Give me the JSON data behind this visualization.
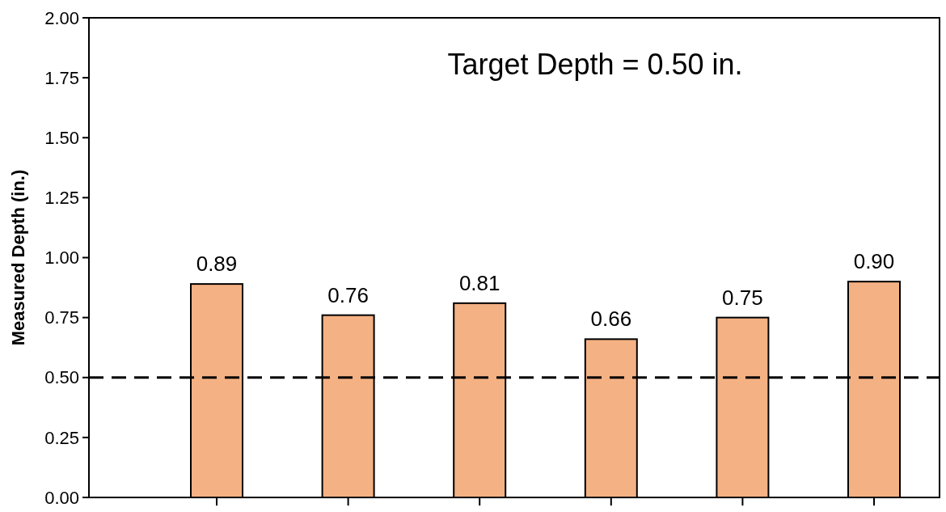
{
  "chart_data": {
    "type": "bar",
    "ylabel": "Measured Depth (in.)",
    "categories": [
      null,
      null,
      null,
      null,
      null,
      null
    ],
    "values": [
      0.89,
      0.76,
      0.81,
      0.66,
      0.75,
      0.9
    ],
    "color": "#f4b183",
    "ylim": [
      0,
      2
    ],
    "yticks": [
      {
        "value": 0,
        "label": "0.00"
      },
      {
        "value": 0.25,
        "label": "0.25"
      },
      {
        "value": 0.5,
        "label": "0.50"
      },
      {
        "value": 0.75,
        "label": "0.75"
      },
      {
        "value": 1,
        "label": "1.00"
      },
      {
        "value": 1.25,
        "label": "1.25"
      },
      {
        "value": 1.5,
        "label": "1.50"
      },
      {
        "value": 1.75,
        "label": "1.75"
      },
      {
        "value": 2,
        "label": "2.00"
      }
    ],
    "value_labels": [
      "0.89",
      "0.76",
      "0.81",
      "0.66",
      "0.75",
      "0.90"
    ],
    "ref_lines": [
      {
        "axis": "y",
        "value": 0.5,
        "color": "#000000",
        "line_style": "dashed"
      }
    ],
    "annotations": [
      "Target Depth = 0.50 in."
    ]
  }
}
